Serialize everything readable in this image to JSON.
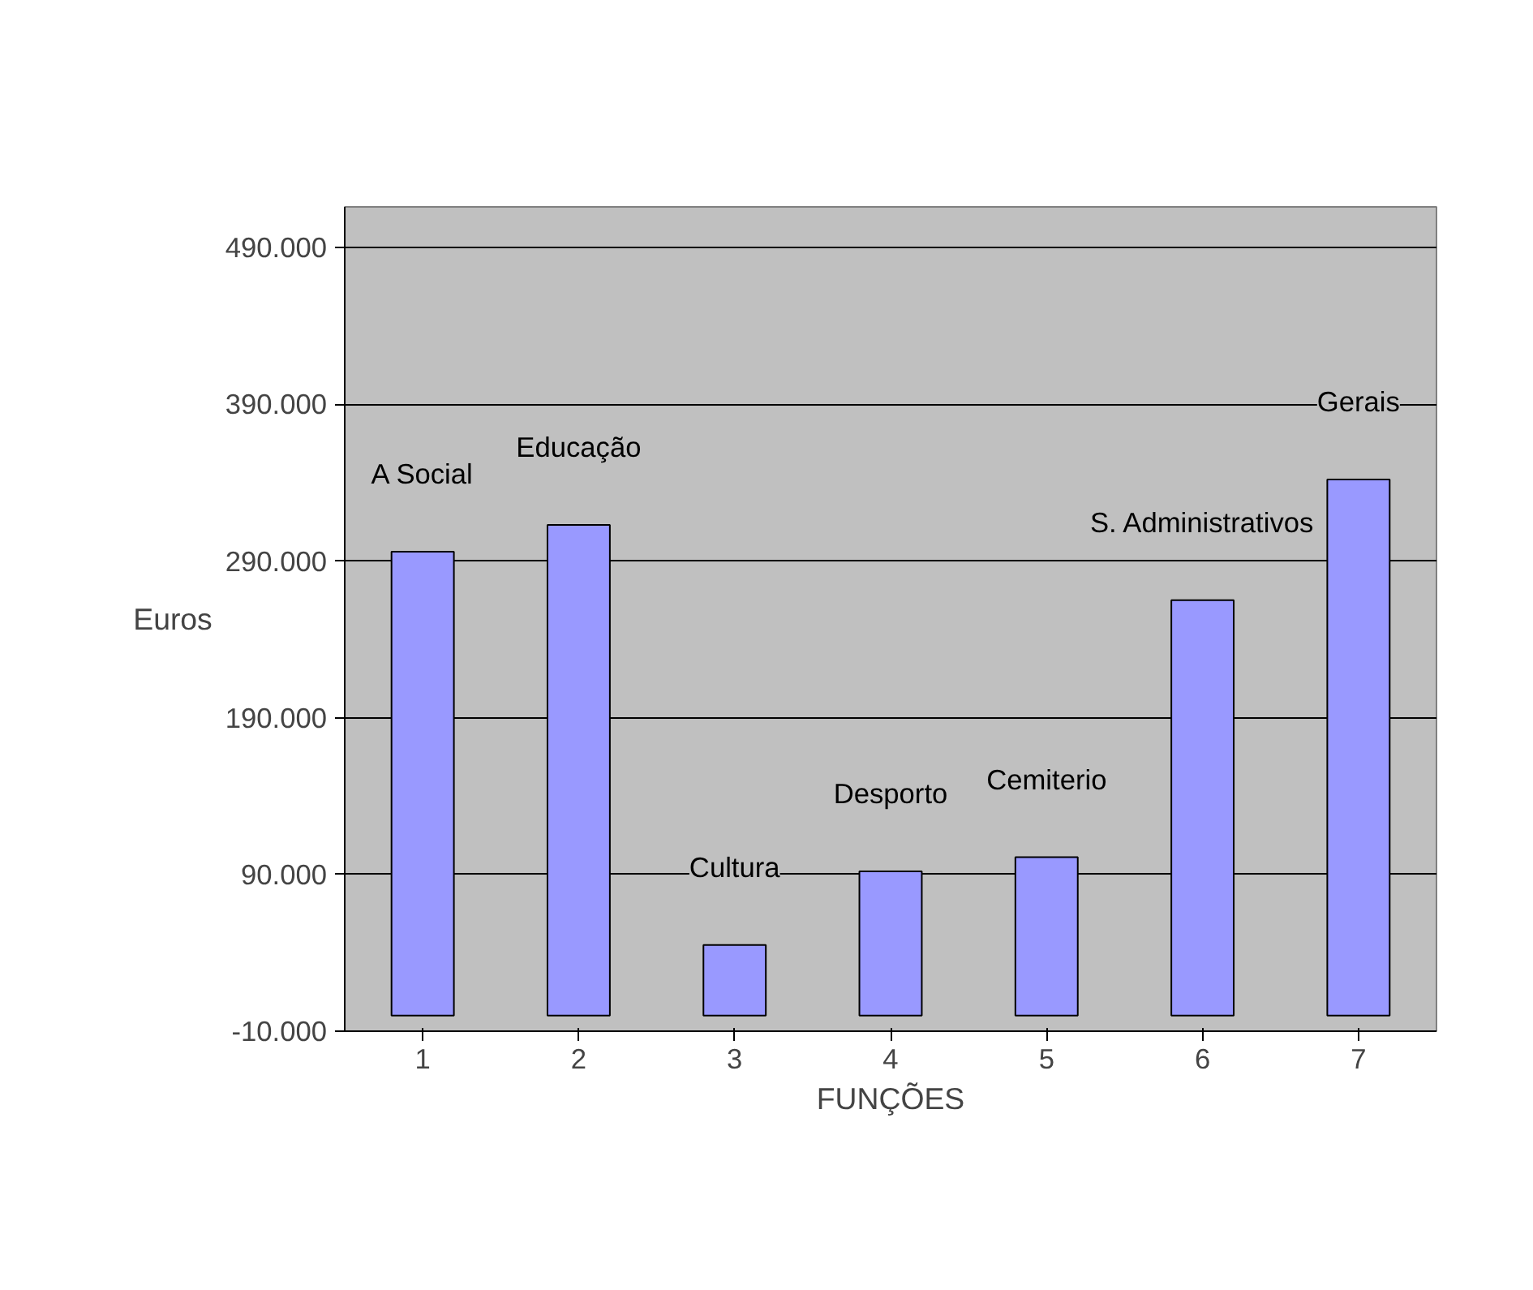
{
  "chart_data": {
    "type": "bar",
    "xlabel": "FUNÇÕES",
    "ylabel": "Euros",
    "categories": [
      "1",
      "2",
      "3",
      "4",
      "5",
      "6",
      "7"
    ],
    "values": [
      296000,
      313000,
      45000,
      92000,
      101000,
      265000,
      342000
    ],
    "color": "#9999ff",
    "ylim": [
      -10000,
      516000
    ],
    "yticks": [
      {
        "value": -10000,
        "label": "-10.000"
      },
      {
        "value": 90000,
        "label": "90.000"
      },
      {
        "value": 190000,
        "label": "190.000"
      },
      {
        "value": 290000,
        "label": "290.000"
      },
      {
        "value": 390000,
        "label": "390.000"
      },
      {
        "value": 490000,
        "label": "490.000"
      }
    ],
    "grid": "y",
    "legend": false,
    "annotations": [
      "A Social",
      "Educação",
      "Cultura",
      "Desporto",
      "Cemiterio",
      "S. Administrativos",
      "Gerais"
    ]
  }
}
